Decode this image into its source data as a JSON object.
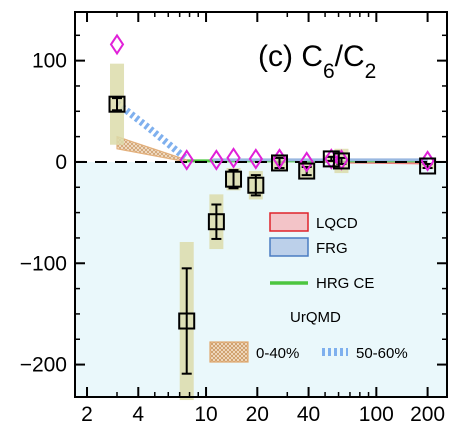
{
  "chart_data": {
    "type": "scatter",
    "title_main": "(c) C",
    "title_sub1": "6",
    "title_slash": "/C",
    "title_sub2": "2",
    "xscale": "log",
    "xlim": [
      1.7,
      260
    ],
    "ylim": [
      -232,
      148
    ],
    "background_negative_color": "#eaf8fb",
    "x_ticks": [
      {
        "value": 2,
        "label": "2"
      },
      {
        "value": 4,
        "label": "4"
      },
      {
        "value": 10,
        "label": "10"
      },
      {
        "value": 20,
        "label": "20"
      },
      {
        "value": 40,
        "label": "40"
      },
      {
        "value": 100,
        "label": "100"
      },
      {
        "value": 200,
        "label": "200"
      }
    ],
    "x_minor_ticks": [
      3,
      5,
      6,
      7,
      8,
      9,
      30,
      50,
      60,
      70,
      80,
      90
    ],
    "y_ticks": [
      {
        "value": 100,
        "label": "100"
      },
      {
        "value": 0,
        "label": "0"
      },
      {
        "value": -100,
        "label": "−100"
      },
      {
        "value": -200,
        "label": "−200"
      }
    ],
    "y_minor_ticks": [
      -175,
      -150,
      -125,
      -75,
      -50,
      -25,
      25,
      50,
      75,
      125
    ],
    "zero_line": "dashed",
    "legend": {
      "placement": "bottom-right",
      "items": [
        {
          "label": "LQCD",
          "kind": "box",
          "fill": "#f3c4c8",
          "stroke": "#e0232a"
        },
        {
          "label": "FRG",
          "kind": "box",
          "fill": "#bcd0ea",
          "stroke": "#4a7cc2"
        },
        {
          "label": "HRG CE",
          "kind": "line",
          "color": "#4cc63f"
        }
      ],
      "urqmd_label": "UrQMD",
      "urqmd_items": [
        {
          "label": "0-40%",
          "kind": "hatched",
          "color": "#e1a86e"
        },
        {
          "label": "50-60%",
          "kind": "dashed",
          "color": "#7fb0ee"
        }
      ]
    },
    "series": [
      {
        "name": "",
        "marker": "square",
        "color": "#000000",
        "sys_color": "#dcdcaa",
        "points": [
          {
            "x": 3.0,
            "y": 57,
            "err": 6,
            "sys": 40
          },
          {
            "x": 7.7,
            "y": -157,
            "err": 52,
            "sys": 78
          },
          {
            "x": 11.5,
            "y": -59,
            "err": 17,
            "sys": 27
          },
          {
            "x": 14.5,
            "y": -17,
            "err": 9,
            "sys": 11
          },
          {
            "x": 19.6,
            "y": -23,
            "err": 10,
            "sys": 14
          },
          {
            "x": 27,
            "y": -1,
            "err": 5,
            "sys": 7
          },
          {
            "x": 39,
            "y": -9,
            "err": 4,
            "sys": 8
          },
          {
            "x": 54.4,
            "y": 3,
            "err": 2,
            "sys": 4
          },
          {
            "x": 62.4,
            "y": 1,
            "err": 3,
            "sys": 12
          },
          {
            "x": 200,
            "y": -4,
            "err": 2,
            "sys": 3
          }
        ]
      },
      {
        "name": "",
        "marker": "diamond",
        "color": "#e020d8",
        "points": [
          {
            "x": 3.0,
            "y": 116
          },
          {
            "x": 7.7,
            "y": 2
          },
          {
            "x": 11.5,
            "y": 2
          },
          {
            "x": 14.5,
            "y": 4
          },
          {
            "x": 19.6,
            "y": 3
          },
          {
            "x": 27,
            "y": 3
          },
          {
            "x": 39,
            "y": 0
          },
          {
            "x": 54.4,
            "y": 3
          },
          {
            "x": 62.4,
            "y": 2
          },
          {
            "x": 200,
            "y": 1
          }
        ]
      }
    ],
    "bands": [
      {
        "name": "LQCD",
        "color": "#f08080",
        "x": [
          62,
          200
        ],
        "y": [
          0,
          -1
        ]
      },
      {
        "name": "HRG CE",
        "color": "#4cc63f",
        "x": [
          7.7,
          200
        ],
        "y": [
          1,
          1
        ]
      },
      {
        "name": "FRG",
        "color": "#9ab8e0",
        "x": [
          11,
          200
        ],
        "y": [
          2,
          2
        ]
      },
      {
        "name": "UrQMD 0-40%",
        "color": "#e1a86e",
        "x": [
          3,
          7.7
        ],
        "y_upper": [
          25,
          2
        ],
        "y_lower": [
          13,
          0
        ]
      },
      {
        "name": "UrQMD 50-60%",
        "color": "#7fb0ee",
        "x": [
          3,
          4.5,
          7.7
        ],
        "y": [
          58,
          35,
          3
        ]
      }
    ]
  }
}
